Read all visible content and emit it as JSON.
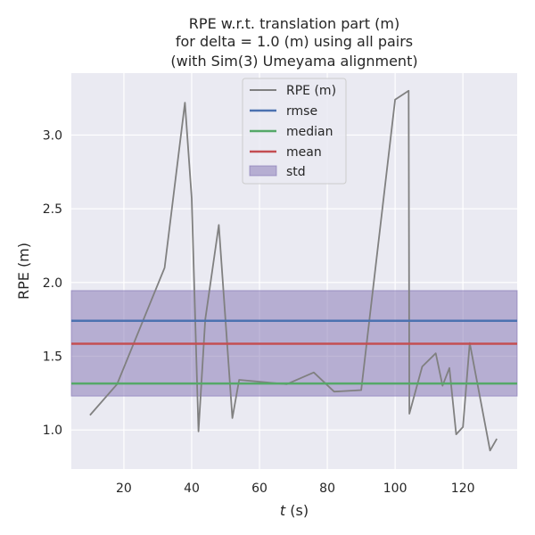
{
  "chart_data": {
    "type": "line",
    "title_lines": [
      "RPE w.r.t. translation part (m)",
      "for delta = 1.0 (m) using all pairs",
      "(with Sim(3) Umeyama alignment)"
    ],
    "xlabel_italic": "t",
    "xlabel_rest": " (s)",
    "ylabel": "RPE (m)",
    "xlim": [
      4.5,
      136
    ],
    "ylim": [
      0.735,
      3.42
    ],
    "xticks": [
      20,
      40,
      60,
      80,
      100,
      120
    ],
    "yticks": [
      1.0,
      1.5,
      2.0,
      2.5,
      3.0
    ],
    "grid": true,
    "legend_position": "top-center",
    "series": [
      {
        "name": "RPE (m)",
        "color": "#808080",
        "x": [
          10,
          18,
          32,
          38,
          40,
          42,
          44,
          48,
          52,
          54,
          68,
          76,
          82,
          90,
          100,
          104,
          104.2,
          108,
          112,
          114,
          116,
          118,
          120,
          122,
          128,
          130
        ],
        "y": [
          1.1,
          1.31,
          2.1,
          3.22,
          2.57,
          0.99,
          1.75,
          2.39,
          1.08,
          1.34,
          1.31,
          1.39,
          1.26,
          1.27,
          3.24,
          3.3,
          1.11,
          1.43,
          1.52,
          1.3,
          1.42,
          0.97,
          1.02,
          1.59,
          0.86,
          0.94
        ]
      }
    ],
    "stats": {
      "rmse": {
        "name": "rmse",
        "value": 1.74,
        "color": "#4c72b0"
      },
      "median": {
        "name": "median",
        "value": 1.315,
        "color": "#55a868"
      },
      "mean": {
        "name": "mean",
        "value": 1.585,
        "color": "#c44e52"
      },
      "std": {
        "name": "std",
        "low": 1.23,
        "high": 1.945,
        "color": "#8172b2"
      }
    }
  }
}
